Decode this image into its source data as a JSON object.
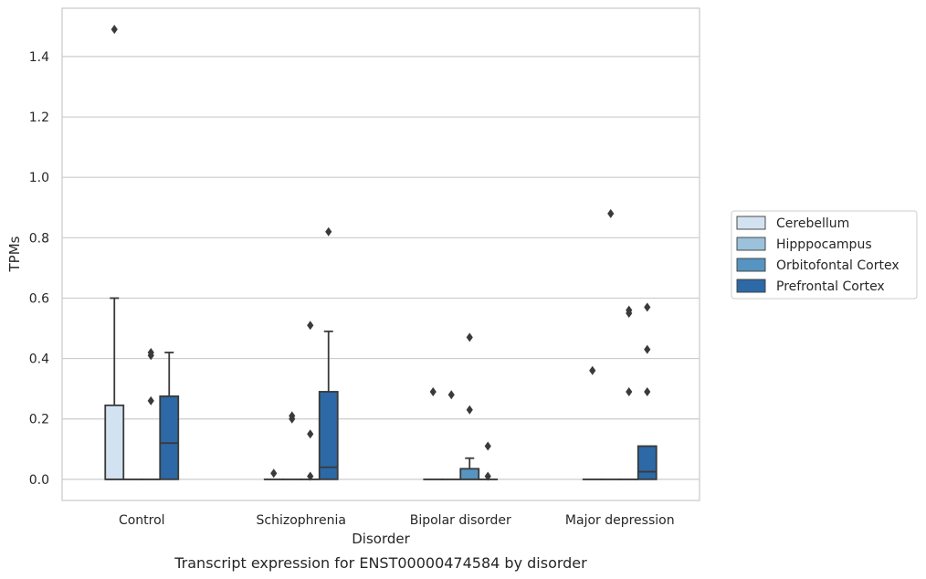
{
  "caption": "Transcript expression for ENST00000474584 by disorder",
  "chart_data": {
    "type": "box",
    "title": "",
    "xlabel": "Disorder",
    "ylabel": "TPMs",
    "ylim": [
      -0.07,
      1.56
    ],
    "yticks": [
      "0.0",
      "0.2",
      "0.4",
      "0.6",
      "0.8",
      "1.0",
      "1.2",
      "1.4"
    ],
    "ytick_values": [
      0,
      0.2,
      0.4,
      0.6,
      0.8,
      1.0,
      1.2,
      1.4
    ],
    "grid": true,
    "legend_position": "right",
    "categories": [
      "Control",
      "Schizophrenia",
      "Bipolar disorder",
      "Major depression"
    ],
    "series": [
      {
        "name": "Cerebellum",
        "color": "#d3e2f0",
        "boxes": [
          {
            "q1": 0,
            "median": 0,
            "q3": 0.245,
            "whisker_low": 0,
            "whisker_high": 0.6,
            "outliers": [
              1.49
            ]
          },
          {
            "q1": 0,
            "median": 0,
            "q3": 0,
            "whisker_low": 0,
            "whisker_high": 0,
            "outliers": [
              0.02
            ]
          },
          {
            "q1": 0,
            "median": 0,
            "q3": 0,
            "whisker_low": 0,
            "whisker_high": 0,
            "outliers": [
              0.29
            ]
          },
          {
            "q1": 0,
            "median": 0,
            "q3": 0,
            "whisker_low": 0,
            "whisker_high": 0,
            "outliers": [
              0.36
            ]
          }
        ]
      },
      {
        "name": "Hipppocampus",
        "color": "#9bc2da",
        "boxes": [
          {
            "q1": 0,
            "median": 0,
            "q3": 0,
            "whisker_low": 0,
            "whisker_high": 0,
            "outliers": []
          },
          {
            "q1": 0,
            "median": 0,
            "q3": 0,
            "whisker_low": 0,
            "whisker_high": 0,
            "outliers": [
              0.2,
              0.21
            ]
          },
          {
            "q1": 0,
            "median": 0,
            "q3": 0,
            "whisker_low": 0,
            "whisker_high": 0,
            "outliers": [
              0.28
            ]
          },
          {
            "q1": 0,
            "median": 0,
            "q3": 0,
            "whisker_low": 0,
            "whisker_high": 0,
            "outliers": [
              0.88
            ]
          }
        ]
      },
      {
        "name": "Orbitofontal Cortex",
        "color": "#5694c2",
        "boxes": [
          {
            "q1": 0,
            "median": 0,
            "q3": 0,
            "whisker_low": 0,
            "whisker_high": 0,
            "outliers": [
              0.26,
              0.41,
              0.42
            ]
          },
          {
            "q1": 0,
            "median": 0,
            "q3": 0,
            "whisker_low": 0,
            "whisker_high": 0,
            "outliers": [
              0.01,
              0.15,
              0.51
            ]
          },
          {
            "q1": 0,
            "median": 0,
            "q3": 0.035,
            "whisker_low": 0,
            "whisker_high": 0.07,
            "outliers": [
              0.23,
              0.47
            ]
          },
          {
            "q1": 0,
            "median": 0,
            "q3": 0,
            "whisker_low": 0,
            "whisker_high": 0,
            "outliers": [
              0.29,
              0.55,
              0.56
            ]
          }
        ]
      },
      {
        "name": "Prefrontal Cortex",
        "color": "#2c69a6",
        "boxes": [
          {
            "q1": 0,
            "median": 0.12,
            "q3": 0.275,
            "whisker_low": 0,
            "whisker_high": 0.42,
            "outliers": []
          },
          {
            "q1": 0,
            "median": 0.04,
            "q3": 0.29,
            "whisker_low": 0,
            "whisker_high": 0.49,
            "outliers": [
              0.82
            ]
          },
          {
            "q1": 0,
            "median": 0,
            "q3": 0,
            "whisker_low": 0,
            "whisker_high": 0,
            "outliers": [
              0.01,
              0.11
            ]
          },
          {
            "q1": 0,
            "median": 0.025,
            "q3": 0.11,
            "whisker_low": 0,
            "whisker_high": 0.11,
            "outliers": [
              0.29,
              0.43,
              0.57
            ]
          }
        ]
      }
    ]
  }
}
